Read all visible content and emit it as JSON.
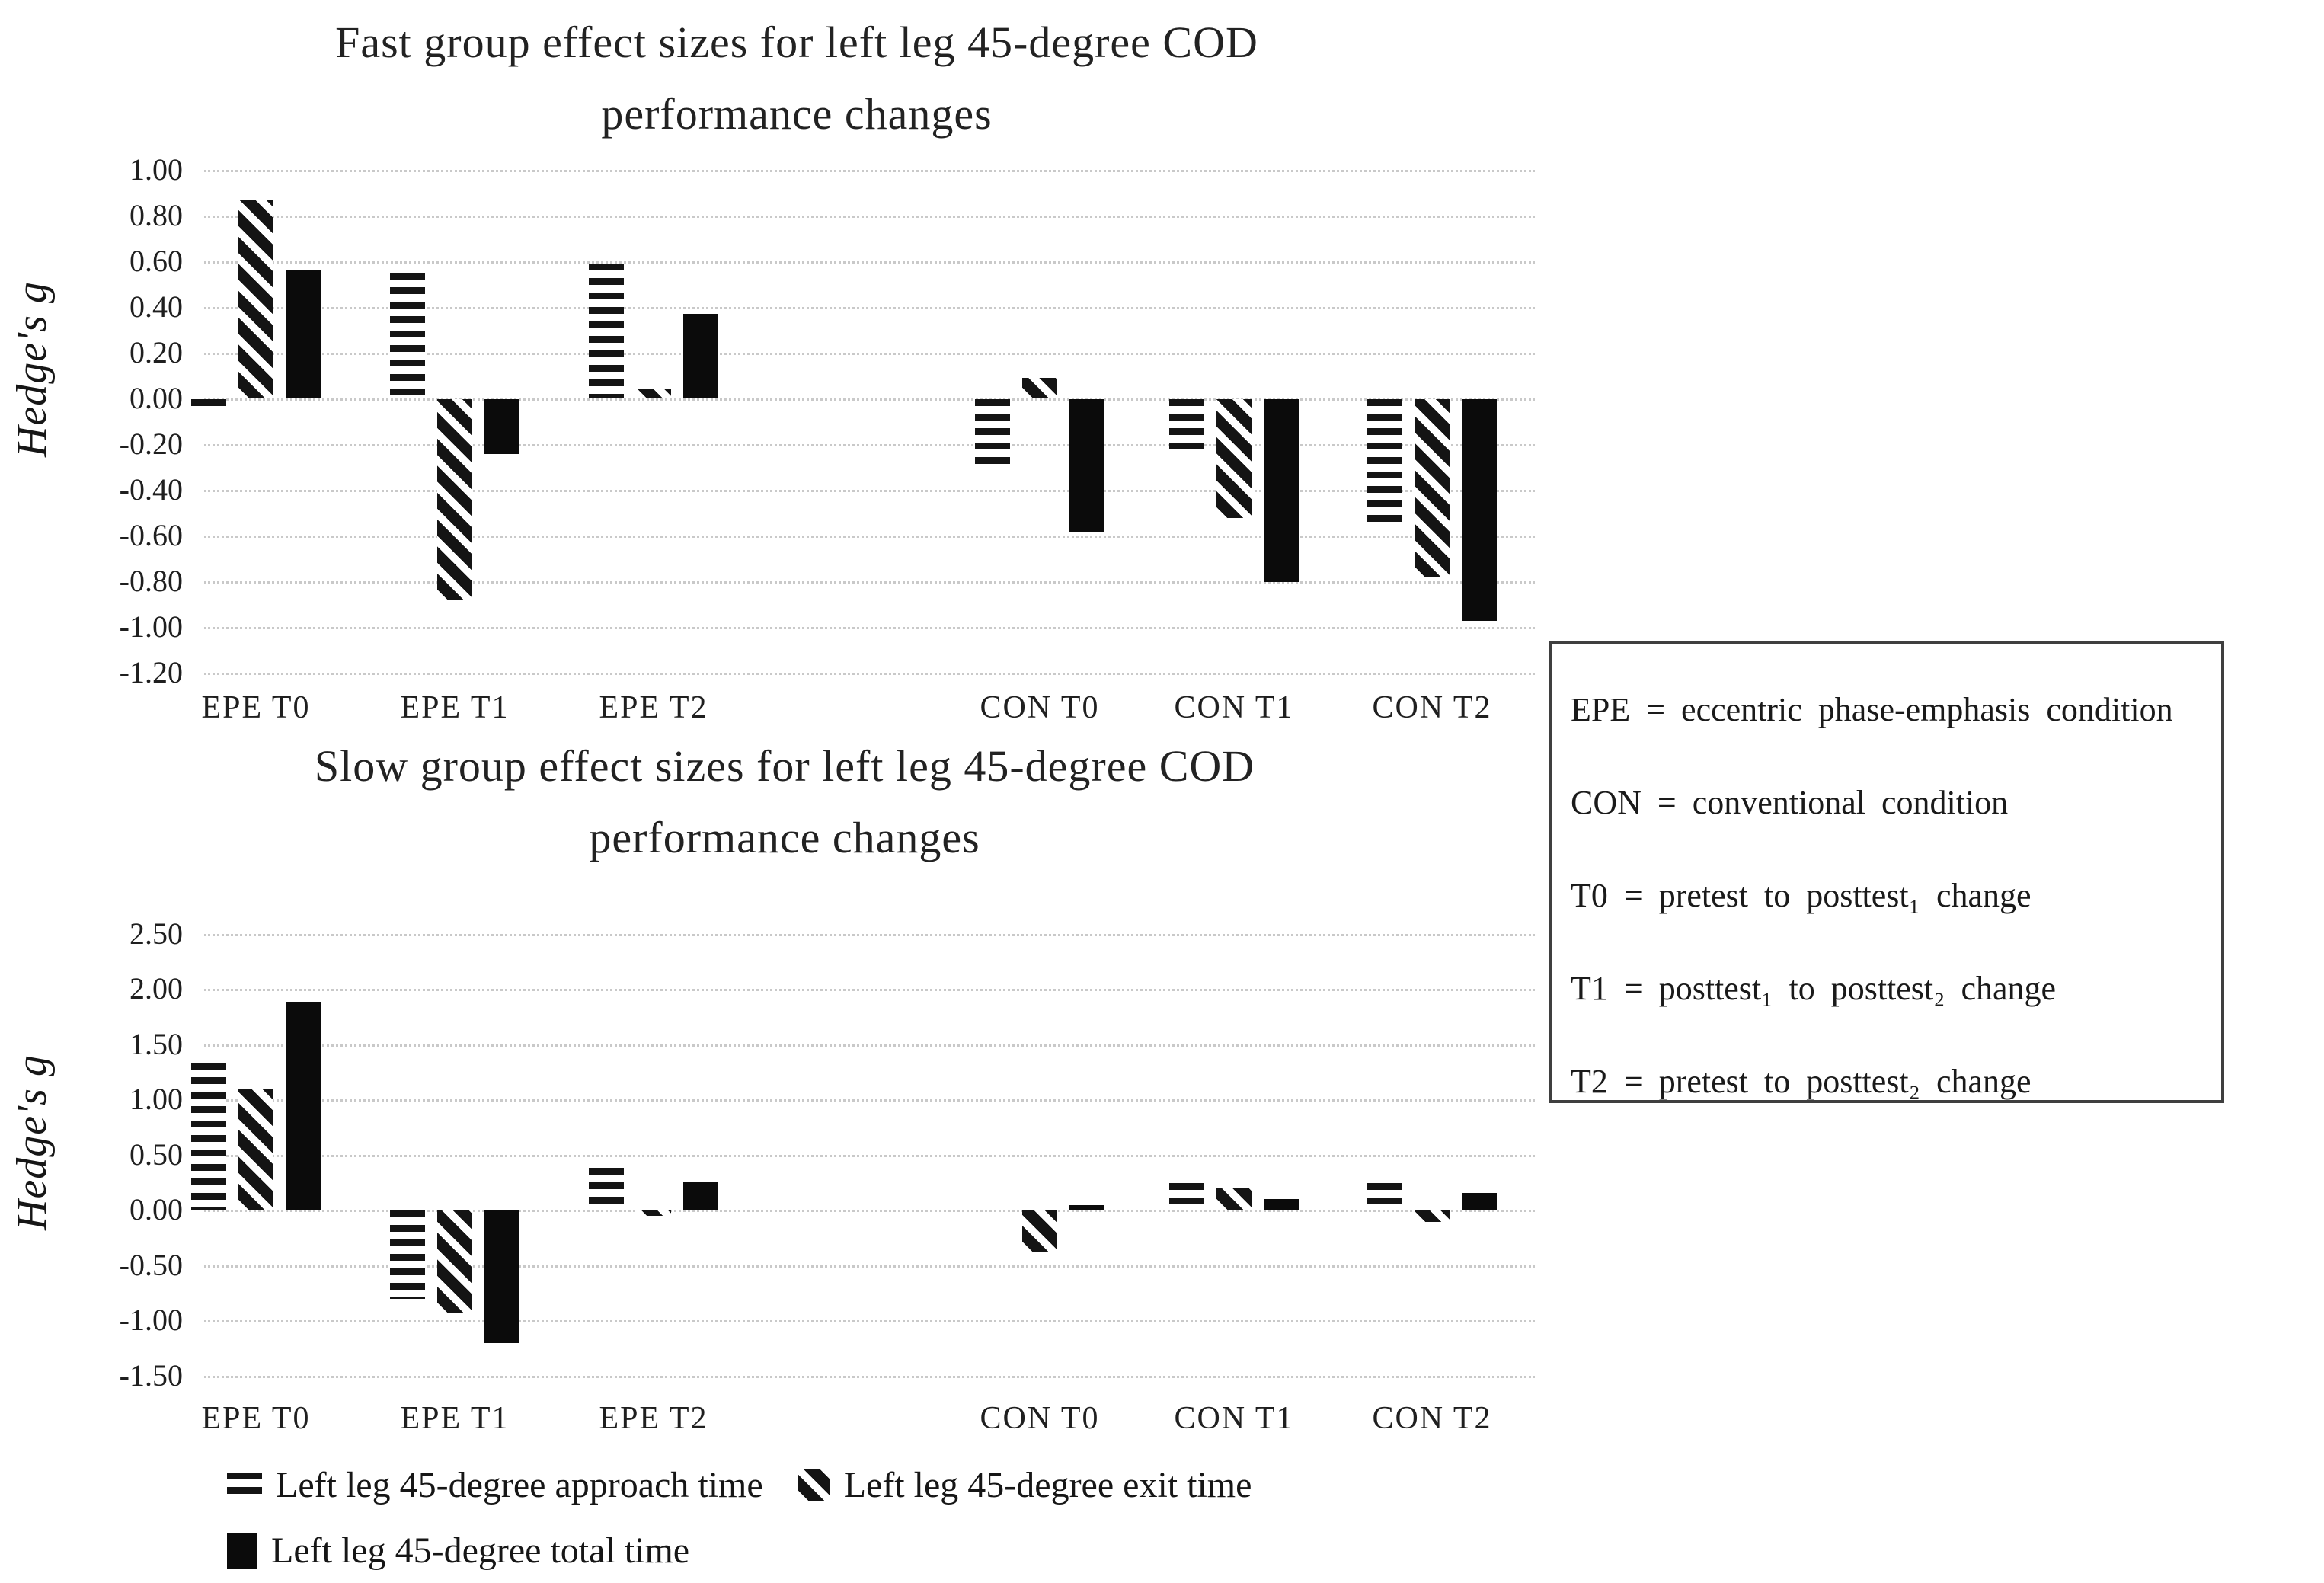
{
  "charts": [
    {
      "title_lines": [
        "Fast group effect sizes for left leg 45-degree COD",
        "performance changes"
      ],
      "ylabel": "Hedge's g",
      "chart_data": {
        "type": "bar",
        "categories": [
          "EPE T0",
          "EPE T1",
          "EPE T2",
          "CON T0",
          "CON T1",
          "CON T2"
        ],
        "series": [
          {
            "name": "Left leg 45-degree approach time",
            "pattern": "horizontal-stripes",
            "values": [
              -0.05,
              0.55,
              0.59,
              -0.3,
              -0.24,
              -0.57
            ]
          },
          {
            "name": "Left leg 45-degree exit time",
            "pattern": "diagonal-stripes",
            "values": [
              0.87,
              -0.88,
              0.04,
              0.09,
              -0.52,
              -0.78
            ]
          },
          {
            "name": "Left leg 45-degree total time",
            "pattern": "solid",
            "values": [
              0.56,
              -0.24,
              0.37,
              -0.58,
              -0.8,
              -0.97
            ]
          }
        ],
        "ylim": [
          -1.2,
          1.0
        ],
        "yticks": [
          {
            "label": "1.00",
            "value": 1.0
          },
          {
            "label": "0.80",
            "value": 0.8
          },
          {
            "label": "0.60",
            "value": 0.6
          },
          {
            "label": "0.40",
            "value": 0.4
          },
          {
            "label": "0.20",
            "value": 0.2
          },
          {
            "label": "0.00",
            "value": 0.0
          },
          {
            "label": "-0.20",
            "value": -0.2
          },
          {
            "label": "-0.40",
            "value": -0.4
          },
          {
            "label": "-0.60",
            "value": -0.6
          },
          {
            "label": "-0.80",
            "value": -0.8
          },
          {
            "label": "-1.00",
            "value": -1.0
          },
          {
            "label": "-1.20",
            "value": -1.2
          }
        ],
        "grid": true,
        "legend_position": "bottom"
      }
    },
    {
      "title_lines": [
        "Slow group effect sizes for left leg 45-degree COD",
        "performance changes"
      ],
      "ylabel": "Hedge's g",
      "chart_data": {
        "type": "bar",
        "categories": [
          "EPE T0",
          "EPE T1",
          "EPE T2",
          "CON T0",
          "CON T1",
          "CON T2"
        ],
        "series": [
          {
            "name": "Left leg 45-degree approach time",
            "pattern": "horizontal-stripes",
            "values": [
              1.33,
              -0.8,
              0.38,
              0.0,
              0.24,
              0.24
            ]
          },
          {
            "name": "Left leg 45-degree exit time",
            "pattern": "diagonal-stripes",
            "values": [
              1.1,
              -0.93,
              -0.05,
              -0.38,
              0.2,
              -0.1
            ]
          },
          {
            "name": "Left leg 45-degree total time",
            "pattern": "solid",
            "values": [
              1.88,
              -1.2,
              0.25,
              0.04,
              0.1,
              0.15
            ]
          }
        ],
        "ylim": [
          -1.5,
          2.5
        ],
        "yticks": [
          {
            "label": "2.50",
            "value": 2.5
          },
          {
            "label": "2.00",
            "value": 2.0
          },
          {
            "label": "1.50",
            "value": 1.5
          },
          {
            "label": "1.00",
            "value": 1.0
          },
          {
            "label": "0.50",
            "value": 0.5
          },
          {
            "label": "0.00",
            "value": 0.0
          },
          {
            "label": "-0.50",
            "value": -0.5
          },
          {
            "label": "-1.00",
            "value": -1.0
          },
          {
            "label": "-1.50",
            "value": -1.5
          }
        ],
        "grid": true,
        "legend_position": "bottom"
      }
    }
  ],
  "legend_box": {
    "lines": [
      "EPE = eccentric phase-emphasis condition",
      "CON = conventional condition",
      "T0 = pretest to posttest₁ change",
      "T1 = posttest₁ to posttest₂ change",
      "T2 = pretest to posttest₂ change"
    ]
  },
  "series_legend": {
    "approach_label": "Left leg 45-degree approach time",
    "exit_label": "Left leg 45-degree exit time",
    "total_label": "Left leg 45-degree total time"
  }
}
